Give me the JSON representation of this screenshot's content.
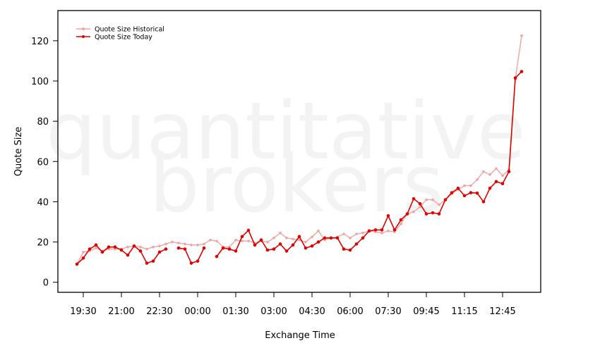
{
  "chart_data": {
    "type": "line",
    "watermark": [
      "quantitative",
      "brokers"
    ],
    "x_label": "Exchange Time",
    "y_label": "Quote Size",
    "categories": [
      null,
      "19:30",
      null,
      null,
      null,
      null,
      null,
      "21:00",
      null,
      null,
      null,
      null,
      null,
      "22:30",
      null,
      null,
      null,
      null,
      null,
      "00:00",
      null,
      null,
      null,
      null,
      null,
      "01:30",
      null,
      null,
      null,
      null,
      null,
      "03:00",
      null,
      null,
      null,
      null,
      null,
      "04:30",
      null,
      null,
      null,
      null,
      null,
      "06:00",
      null,
      null,
      null,
      null,
      null,
      "07:30",
      null,
      null,
      null,
      null,
      null,
      "09:45",
      null,
      null,
      null,
      null,
      null,
      "11:15",
      null,
      null,
      null,
      null,
      null,
      "12:45",
      null,
      null,
      null
    ],
    "series": [
      {
        "name": "Quote Size Historical",
        "color": "#f4a3a3",
        "values": [
          9,
          15,
          15.5,
          17,
          15.5,
          16.5,
          16.5,
          16.5,
          17.5,
          18,
          17.5,
          16.5,
          17.5,
          18,
          19,
          20,
          19.5,
          19,
          18.5,
          18.5,
          19,
          21,
          20.5,
          17.5,
          17.5,
          21,
          20.5,
          20.5,
          19.5,
          20.5,
          20,
          22,
          24.5,
          22,
          21.5,
          21,
          20,
          22.5,
          25.5,
          21,
          22,
          22.5,
          24,
          22,
          24,
          24.5,
          25.5,
          25,
          24.5,
          25.5,
          25,
          29,
          34,
          35,
          37.5,
          41,
          41,
          38.5,
          41,
          44,
          46,
          48,
          48,
          51,
          55,
          53.5,
          56.5,
          53,
          56,
          101,
          122.5
        ]
      },
      {
        "name": "Quote Size Today",
        "color": "#e00000",
        "values": [
          9,
          12,
          16.5,
          18.5,
          15,
          17.5,
          17.5,
          16,
          13.5,
          18,
          15.5,
          9.5,
          10.5,
          15,
          16.5,
          null,
          17,
          16.5,
          9.5,
          10.5,
          17,
          null,
          12.8,
          17,
          16.5,
          15.5,
          22.7,
          25.8,
          18.5,
          21,
          16,
          16.5,
          19,
          15.5,
          18.5,
          22.7,
          17,
          18,
          20,
          22,
          22,
          22,
          16.5,
          16,
          19,
          22,
          25.5,
          26,
          26,
          33,
          26,
          31,
          34,
          41.5,
          39,
          34,
          34.5,
          34,
          41,
          44.5,
          46.7,
          43,
          44.5,
          44.3,
          40,
          46.7,
          50,
          49,
          55,
          101.5,
          104.7
        ]
      }
    ],
    "ylim": [
      -5,
      135
    ],
    "yticks": [
      0,
      20,
      40,
      60,
      80,
      100,
      120
    ],
    "grid": false,
    "legend": "top-left"
  }
}
